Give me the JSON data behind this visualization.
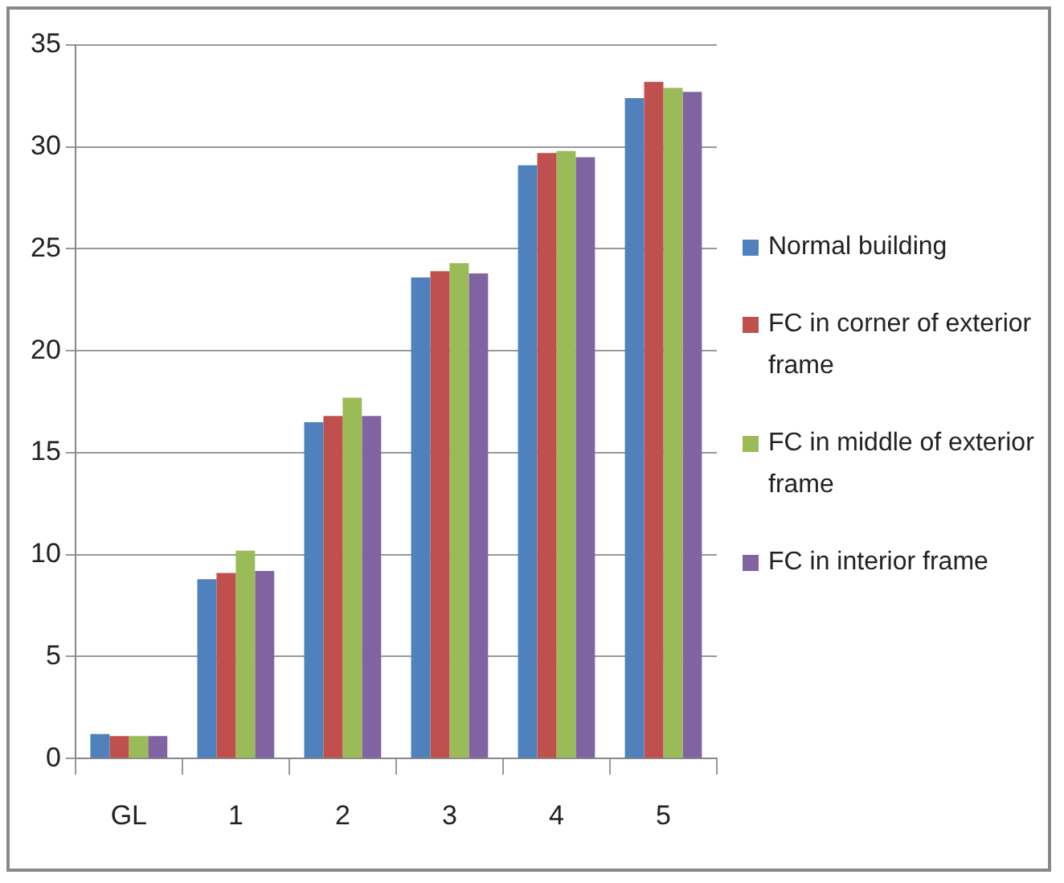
{
  "chart_data": {
    "type": "bar",
    "categories": [
      "GL",
      "1",
      "2",
      "3",
      "4",
      "5"
    ],
    "series": [
      {
        "name": "Normal building",
        "color": "#4f81bd",
        "values": [
          1.2,
          8.8,
          16.5,
          23.6,
          29.1,
          32.4
        ]
      },
      {
        "name": "FC in corner of exterior frame",
        "color": "#c0504d",
        "values": [
          1.1,
          9.1,
          16.8,
          23.9,
          29.7,
          33.2
        ]
      },
      {
        "name": "FC in middle of exterior frame",
        "color": "#9bbb59",
        "values": [
          1.1,
          10.2,
          17.7,
          24.3,
          29.8,
          32.9
        ]
      },
      {
        "name": "FC in interior frame",
        "color": "#8064a2",
        "values": [
          1.1,
          9.2,
          16.8,
          23.8,
          29.5,
          32.7
        ]
      }
    ],
    "ylim": [
      0,
      35
    ],
    "yticks": [
      0,
      5,
      10,
      15,
      20,
      25,
      30,
      35
    ],
    "grid": "y",
    "legend": "right"
  }
}
